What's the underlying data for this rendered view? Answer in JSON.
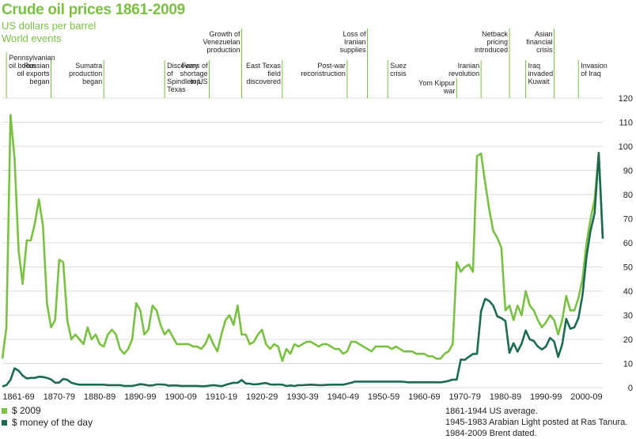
{
  "title": "Crude oil prices 1861-2009",
  "subtitle": "US dollars per barrel",
  "events_heading": "World events",
  "colors": {
    "real": "#7ac142",
    "nominal": "#1d6b4e",
    "grid": "#dcdcdc",
    "marker": "#7ac142"
  },
  "legend": [
    {
      "label": "$ 2009",
      "color": "#7ac142"
    },
    {
      "label": "$ money of the day",
      "color": "#1d6b4e"
    }
  ],
  "notes": [
    "1861-1944 US average.",
    "1945-1983 Arabian Light posted at Ras Tanura.",
    "1984-2009 Brent dated."
  ],
  "chart_data": {
    "type": "line",
    "title": "Crude oil prices 1861-2009",
    "subtitle": "US dollars per barrel",
    "xlabel": "",
    "ylabel": "",
    "xlim": [
      1861,
      2009
    ],
    "ylim": [
      0,
      120
    ],
    "yticks": [
      0,
      10,
      20,
      30,
      40,
      50,
      60,
      70,
      80,
      90,
      100,
      110,
      120
    ],
    "xtick_labels": [
      {
        "label": "1861-69",
        "x": 1865
      },
      {
        "label": "1870-79",
        "x": 1875
      },
      {
        "label": "1880-89",
        "x": 1885
      },
      {
        "label": "1890-99",
        "x": 1895
      },
      {
        "label": "1900-09",
        "x": 1905
      },
      {
        "label": "1910-19",
        "x": 1915
      },
      {
        "label": "1920-29",
        "x": 1925
      },
      {
        "label": "1930-39",
        "x": 1935
      },
      {
        "label": "1940-49",
        "x": 1945
      },
      {
        "label": "1950-59",
        "x": 1955
      },
      {
        "label": "1960-69",
        "x": 1965
      },
      {
        "label": "1970-79",
        "x": 1975
      },
      {
        "label": "1980-89",
        "x": 1985
      },
      {
        "label": "1990-99",
        "x": 1995
      },
      {
        "label": "2000-09",
        "x": 2005
      }
    ],
    "grid": true,
    "legend_position": "bottom-left",
    "events": [
      {
        "year": 1862,
        "label": "Pennsylvanian oil boom"
      },
      {
        "year": 1873,
        "label": "Russian oil exports began"
      },
      {
        "year": 1886,
        "label": "Sumatra production began"
      },
      {
        "year": 1901,
        "label": "Discovery of Spindletop, Texas"
      },
      {
        "year": 1912,
        "label": "Fears of shortage in US"
      },
      {
        "year": 1920,
        "label": "Growth of Venezuelan production"
      },
      {
        "year": 1930,
        "label": "East Texas field discovered"
      },
      {
        "year": 1946,
        "label": "Post-war reconstruction"
      },
      {
        "year": 1951,
        "label": "Loss of Iranian supplies"
      },
      {
        "year": 1956,
        "label": "Suez crisis"
      },
      {
        "year": 1973,
        "label": "Yom Kippur war"
      },
      {
        "year": 1979,
        "label": "Iranian revolution"
      },
      {
        "year": 1986,
        "label": "Netback pricing introduced"
      },
      {
        "year": 1990,
        "label": "Iraq invaded Kuwait"
      },
      {
        "year": 1997,
        "label": "Asian financial crisis"
      },
      {
        "year": 2003,
        "label": "Invasion of Iraq"
      }
    ],
    "series": [
      {
        "name": "$ 2009",
        "x": [
          1861,
          1862,
          1863,
          1864,
          1865,
          1866,
          1867,
          1868,
          1869,
          1870,
          1871,
          1872,
          1873,
          1874,
          1875,
          1876,
          1877,
          1878,
          1879,
          1880,
          1881,
          1882,
          1883,
          1884,
          1885,
          1886,
          1887,
          1888,
          1889,
          1890,
          1891,
          1892,
          1893,
          1894,
          1895,
          1896,
          1897,
          1898,
          1899,
          1900,
          1901,
          1902,
          1903,
          1904,
          1905,
          1906,
          1907,
          1908,
          1909,
          1910,
          1911,
          1912,
          1913,
          1914,
          1915,
          1916,
          1917,
          1918,
          1919,
          1920,
          1921,
          1922,
          1923,
          1924,
          1925,
          1926,
          1927,
          1928,
          1929,
          1930,
          1931,
          1932,
          1933,
          1934,
          1935,
          1936,
          1937,
          1938,
          1939,
          1940,
          1941,
          1942,
          1943,
          1944,
          1945,
          1946,
          1947,
          1948,
          1949,
          1950,
          1951,
          1952,
          1953,
          1954,
          1955,
          1956,
          1957,
          1958,
          1959,
          1960,
          1961,
          1962,
          1963,
          1964,
          1965,
          1966,
          1967,
          1968,
          1969,
          1970,
          1971,
          1972,
          1973,
          1974,
          1975,
          1976,
          1977,
          1978,
          1979,
          1980,
          1981,
          1982,
          1983,
          1984,
          1985,
          1986,
          1987,
          1988,
          1989,
          1990,
          1991,
          1992,
          1993,
          1994,
          1995,
          1996,
          1997,
          1998,
          1999,
          2000,
          2001,
          2002,
          2003,
          2004,
          2005,
          2006,
          2007,
          2008,
          2009
        ],
        "values": [
          12,
          25,
          113,
          95,
          57,
          43,
          61,
          61,
          68,
          78,
          67,
          35,
          25,
          28,
          53,
          52,
          28,
          20,
          22,
          20,
          18,
          25,
          20,
          22,
          18,
          17,
          22,
          24,
          22,
          16,
          14,
          16,
          20,
          35,
          32,
          22,
          24,
          34,
          32,
          26,
          22,
          24,
          21,
          18,
          18,
          18,
          18,
          17,
          17,
          16,
          18,
          22,
          18,
          15,
          22,
          28,
          30,
          26,
          34,
          22,
          22,
          18,
          19,
          22,
          24,
          18,
          16,
          18,
          17,
          11,
          16,
          14,
          18,
          17,
          18,
          19,
          19,
          18,
          17,
          18,
          18,
          17,
          16,
          16,
          14,
          15,
          19,
          19,
          18,
          17,
          16,
          15,
          17,
          17,
          17,
          17,
          16,
          17,
          16,
          15,
          15,
          15,
          14,
          14,
          14,
          13,
          13,
          12,
          12,
          14,
          15,
          18,
          52,
          48,
          50,
          51,
          48,
          96,
          97,
          85,
          74,
          65,
          62,
          58,
          32,
          34,
          28,
          34,
          30,
          40,
          34,
          32,
          28,
          25,
          27,
          30,
          28,
          22,
          28,
          38,
          32,
          32,
          37,
          45,
          60,
          70,
          78,
          97,
          62
        ]
      },
      {
        "name": "$ money of the day",
        "x": [
          1861,
          1862,
          1863,
          1864,
          1865,
          1866,
          1867,
          1868,
          1869,
          1870,
          1871,
          1872,
          1873,
          1874,
          1875,
          1876,
          1877,
          1878,
          1879,
          1880,
          1881,
          1882,
          1883,
          1884,
          1885,
          1886,
          1887,
          1888,
          1889,
          1890,
          1891,
          1892,
          1893,
          1894,
          1895,
          1896,
          1897,
          1898,
          1899,
          1900,
          1901,
          1902,
          1903,
          1904,
          1905,
          1906,
          1907,
          1908,
          1909,
          1910,
          1911,
          1912,
          1913,
          1914,
          1915,
          1916,
          1917,
          1918,
          1919,
          1920,
          1921,
          1922,
          1923,
          1924,
          1925,
          1926,
          1927,
          1928,
          1929,
          1930,
          1931,
          1932,
          1933,
          1934,
          1935,
          1936,
          1937,
          1938,
          1939,
          1940,
          1941,
          1942,
          1943,
          1944,
          1945,
          1946,
          1947,
          1948,
          1949,
          1950,
          1951,
          1952,
          1953,
          1954,
          1955,
          1956,
          1957,
          1958,
          1959,
          1960,
          1961,
          1962,
          1963,
          1964,
          1965,
          1966,
          1967,
          1968,
          1969,
          1970,
          1971,
          1972,
          1973,
          1974,
          1975,
          1976,
          1977,
          1978,
          1979,
          1980,
          1981,
          1982,
          1983,
          1984,
          1985,
          1986,
          1987,
          1988,
          1989,
          1990,
          1991,
          1992,
          1993,
          1994,
          1995,
          1996,
          1997,
          1998,
          1999,
          2000,
          2001,
          2002,
          2003,
          2004,
          2005,
          2006,
          2007,
          2008,
          2009
        ],
        "values": [
          0.5,
          1,
          3.2,
          8,
          7,
          5,
          3.8,
          4,
          4,
          4.5,
          4.4,
          4,
          3.4,
          2,
          2.1,
          3.6,
          3.2,
          2,
          1.5,
          1.2,
          1.2,
          1.2,
          1.2,
          1.2,
          1.2,
          1.2,
          1,
          1,
          1,
          1,
          0.7,
          0.7,
          0.7,
          1,
          1.4,
          1.2,
          0.9,
          0.9,
          1.3,
          1.3,
          1.2,
          0.8,
          0.9,
          0.9,
          0.7,
          0.7,
          0.7,
          0.7,
          0.7,
          0.6,
          0.6,
          0.8,
          1,
          0.8,
          0.6,
          1.1,
          1.6,
          2,
          2,
          3.1,
          1.7,
          1.6,
          1.3,
          1.4,
          1.7,
          1.9,
          1.3,
          1.2,
          1.3,
          1.2,
          0.65,
          0.87,
          0.67,
          1,
          0.97,
          1.1,
          1.2,
          1.1,
          1,
          1,
          1.1,
          1.2,
          1.2,
          1.2,
          1.2,
          1.6,
          2,
          2.5,
          2.5,
          2.5,
          2.5,
          2.5,
          2.5,
          2.5,
          2.5,
          2.5,
          2.5,
          2.5,
          2.5,
          2.4,
          2.2,
          2.2,
          2.2,
          2.2,
          2.2,
          2.2,
          2.2,
          2.2,
          2.2,
          2.4,
          2.8,
          3.3,
          3.3,
          11.6,
          11.5,
          12.8,
          13.9,
          14.0,
          31.6,
          36.8,
          35.9,
          34.0,
          29.5,
          28.8,
          27.6,
          14.4,
          18.4,
          14.9,
          18.2,
          23.7,
          20.0,
          19.3,
          17.0,
          15.8,
          17.0,
          20.6,
          19.1,
          12.7,
          17.9,
          28.5,
          24.4,
          25.0,
          28.8,
          38.3,
          54.5,
          65.1,
          72.4,
          97.3,
          61.7
        ]
      }
    ]
  }
}
